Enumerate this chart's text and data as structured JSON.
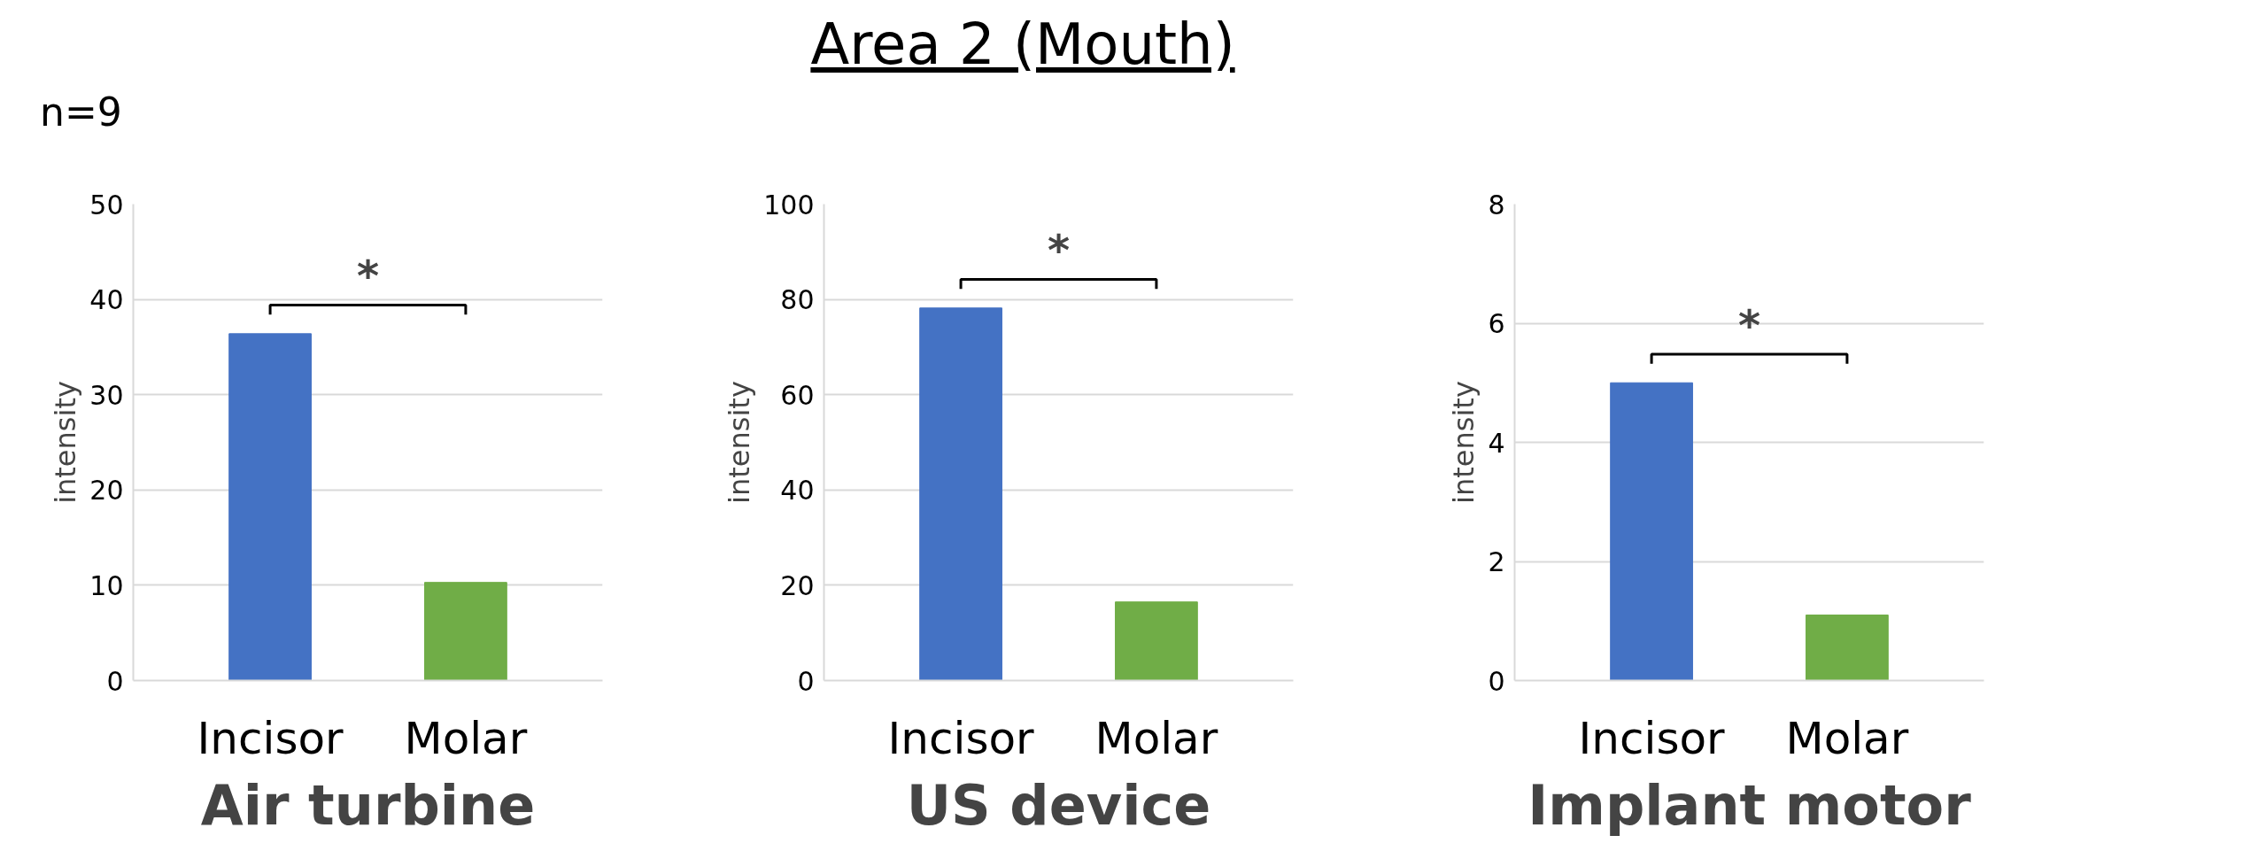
{
  "chart_data": [
    {
      "type": "bar",
      "title": "Air turbine",
      "ylabel": "intensity",
      "categories": [
        "Incisor",
        "Molar"
      ],
      "values": [
        36.4,
        10.3
      ],
      "colors": [
        "#4472c4",
        "#70ad47"
      ],
      "ylim": [
        0,
        50
      ],
      "yticks": [
        0,
        10,
        20,
        30,
        40,
        50
      ],
      "grid": "y",
      "annotations": [
        "Area 2 (Mouth)",
        "n=9",
        "*"
      ]
    },
    {
      "type": "bar",
      "title": "US device",
      "ylabel": "intensity",
      "categories": [
        "Incisor",
        "Molar"
      ],
      "values": [
        78.2,
        16.5
      ],
      "colors": [
        "#4472c4",
        "#70ad47"
      ],
      "ylim": [
        0,
        100
      ],
      "yticks": [
        0,
        20,
        40,
        60,
        80,
        100
      ],
      "grid": "y",
      "annotations": [
        "*"
      ]
    },
    {
      "type": "bar",
      "title": "Implant motor",
      "ylabel": "intensity",
      "categories": [
        "Incisor",
        "Molar"
      ],
      "values": [
        5.0,
        1.1
      ],
      "colors": [
        "#4472c4",
        "#70ad47"
      ],
      "ylim": [
        0,
        8
      ],
      "yticks": [
        0,
        2,
        4,
        6,
        8
      ],
      "grid": "y",
      "annotations": [
        "*"
      ]
    }
  ]
}
